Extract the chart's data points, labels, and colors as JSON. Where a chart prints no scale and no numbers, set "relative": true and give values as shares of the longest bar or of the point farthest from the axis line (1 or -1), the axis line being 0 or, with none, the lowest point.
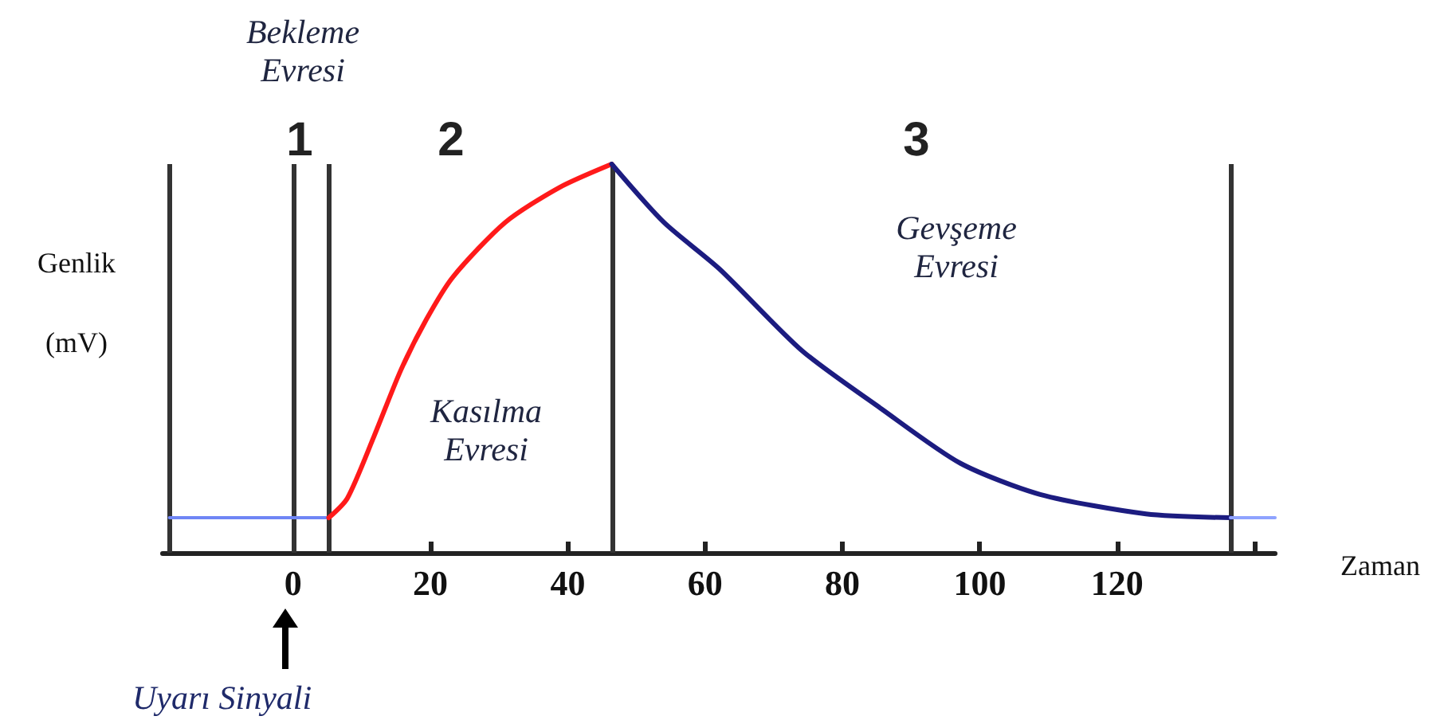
{
  "chart_data": {
    "type": "line",
    "relative": true,
    "xlabel": "Zaman",
    "ylabel": "Genlik\n(mV)",
    "xlim": [
      -19,
      143
    ],
    "xticks": [
      0,
      20,
      40,
      60,
      80,
      100,
      120,
      {
        "value": 140,
        "label": null
      }
    ],
    "grid": false,
    "marker": "none",
    "line_style": "solid",
    "series": [
      {
        "color": "#6f86f5",
        "x": [
          -18,
          5.2
        ],
        "values": [
          0.09,
          0.09
        ]
      },
      {
        "color": "#ff1a1a",
        "x": [
          5.2,
          7.9,
          11.8,
          15.7,
          19.4,
          23.3,
          30.9,
          38.8,
          46.4
        ],
        "values": [
          0.09,
          0.14,
          0.3,
          0.47,
          0.6,
          0.71,
          0.85,
          0.94,
          1
        ]
      },
      {
        "color": "#1c1c80",
        "x": [
          46.4,
          54,
          62.1,
          74.1,
          85.7,
          97.2,
          108.8,
          124.2,
          136.5
        ],
        "values": [
          1,
          0.85,
          0.73,
          0.52,
          0.37,
          0.23,
          0.15,
          0.1,
          0.09
        ]
      },
      {
        "color": "#8fa3ff",
        "x": [
          136.5,
          143
        ],
        "values": [
          0.09,
          0.09
        ]
      }
    ],
    "ref_lines": [
      {
        "axis": "x",
        "value": -18,
        "color": "#333333"
      },
      {
        "axis": "x",
        "value": 0,
        "color": "#333333"
      },
      {
        "axis": "x",
        "value": 5.2,
        "color": "#333333"
      },
      {
        "axis": "x",
        "value": 46.4,
        "color": "#333333"
      },
      {
        "axis": "x",
        "value": 136.5,
        "color": "#333333"
      }
    ],
    "annotations": [
      "Bekleme\nEvresi",
      "1",
      "2",
      "3",
      "Kasılma\nEvresi",
      "Gevşeme\nEvresi",
      "Uyarı Sinyali"
    ]
  }
}
